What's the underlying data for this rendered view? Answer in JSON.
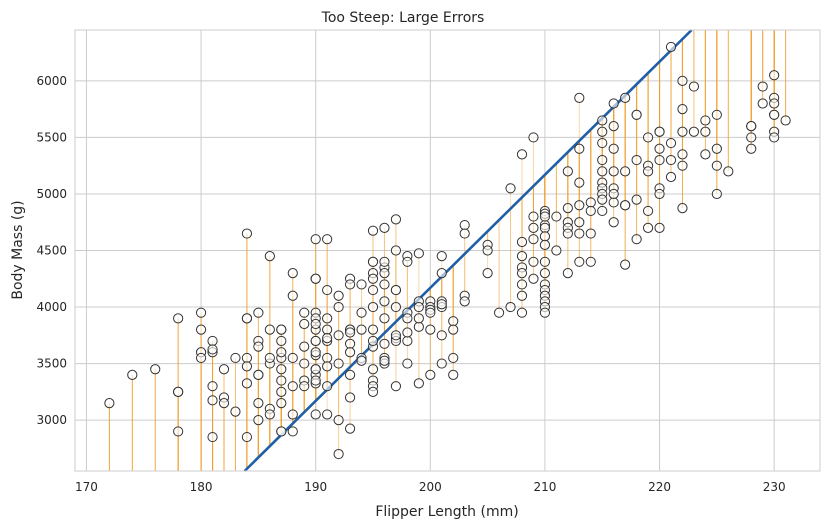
{
  "chart_data": {
    "type": "scatter",
    "title": "Too Steep: Large Errors",
    "xlabel": "Flipper Length (mm)",
    "ylabel": "Body Mass (g)",
    "xlim": [
      169,
      234
    ],
    "ylim": [
      2550,
      6450
    ],
    "xticks": [
      170,
      180,
      190,
      200,
      210,
      220,
      230
    ],
    "yticks": [
      3000,
      3500,
      4000,
      4500,
      5000,
      5500,
      6000
    ],
    "grid": true,
    "line": {
      "slope": 100,
      "intercept": -15830,
      "color": "#1f5fa8"
    },
    "residual_color": "#f0a030",
    "points": [
      [
        172,
        3150
      ],
      [
        174,
        3400
      ],
      [
        176,
        3450
      ],
      [
        178,
        3900
      ],
      [
        178,
        3250
      ],
      [
        178,
        2900
      ],
      [
        178,
        3250
      ],
      [
        180,
        3950
      ],
      [
        180,
        3800
      ],
      [
        180,
        3600
      ],
      [
        180,
        3550
      ],
      [
        181,
        3300
      ],
      [
        181,
        2850
      ],
      [
        181,
        3700
      ],
      [
        181,
        3600
      ],
      [
        181,
        3175
      ],
      [
        181,
        3625
      ],
      [
        182,
        3200
      ],
      [
        182,
        3150
      ],
      [
        182,
        3450
      ],
      [
        183,
        3075
      ],
      [
        183,
        3550
      ],
      [
        184,
        4650
      ],
      [
        184,
        3900
      ],
      [
        184,
        3550
      ],
      [
        184,
        3325
      ],
      [
        184,
        2850
      ],
      [
        184,
        3475
      ],
      [
        184,
        3900
      ],
      [
        185,
        3700
      ],
      [
        185,
        3950
      ],
      [
        185,
        3400
      ],
      [
        185,
        3000
      ],
      [
        185,
        3150
      ],
      [
        185,
        3650
      ],
      [
        185,
        3400
      ],
      [
        186,
        4450
      ],
      [
        186,
        3800
      ],
      [
        186,
        3500
      ],
      [
        186,
        3100
      ],
      [
        186,
        3050
      ],
      [
        186,
        3550
      ],
      [
        187,
        3700
      ],
      [
        187,
        3350
      ],
      [
        187,
        3250
      ],
      [
        187,
        3150
      ],
      [
        187,
        2900
      ],
      [
        187,
        3800
      ],
      [
        187,
        3450
      ],
      [
        187,
        3800
      ],
      [
        187,
        2900
      ],
      [
        187,
        3550
      ],
      [
        187,
        3600
      ],
      [
        188,
        4300
      ],
      [
        188,
        4100
      ],
      [
        188,
        3300
      ],
      [
        188,
        2900
      ],
      [
        188,
        3050
      ],
      [
        188,
        3550
      ],
      [
        189,
        3950
      ],
      [
        189,
        3500
      ],
      [
        189,
        3350
      ],
      [
        189,
        3650
      ],
      [
        189,
        3300
      ],
      [
        189,
        3850
      ],
      [
        190,
        4600
      ],
      [
        190,
        4250
      ],
      [
        190,
        4250
      ],
      [
        190,
        3950
      ],
      [
        190,
        3900
      ],
      [
        190,
        3800
      ],
      [
        190,
        3700
      ],
      [
        190,
        3575
      ],
      [
        190,
        3450
      ],
      [
        190,
        3400
      ],
      [
        190,
        3325
      ],
      [
        190,
        3050
      ],
      [
        190,
        3700
      ],
      [
        190,
        3850
      ],
      [
        190,
        3350
      ],
      [
        190,
        3450
      ],
      [
        190,
        3600
      ],
      [
        191,
        4600
      ],
      [
        191,
        4150
      ],
      [
        191,
        3900
      ],
      [
        191,
        3700
      ],
      [
        191,
        3550
      ],
      [
        191,
        3475
      ],
      [
        191,
        3300
      ],
      [
        191,
        3050
      ],
      [
        191,
        3800
      ],
      [
        191,
        3725
      ],
      [
        192,
        4100
      ],
      [
        192,
        4000
      ],
      [
        192,
        3750
      ],
      [
        192,
        3500
      ],
      [
        192,
        2700
      ],
      [
        192,
        3000
      ],
      [
        193,
        4250
      ],
      [
        193,
        4200
      ],
      [
        193,
        3800
      ],
      [
        193,
        3800
      ],
      [
        193,
        3675
      ],
      [
        193,
        3600
      ],
      [
        193,
        3400
      ],
      [
        193,
        3200
      ],
      [
        193,
        2925
      ],
      [
        193,
        3775
      ],
      [
        194,
        4200
      ],
      [
        194,
        3800
      ],
      [
        194,
        3550
      ],
      [
        194,
        3525
      ],
      [
        194,
        3950
      ],
      [
        195,
        4675
      ],
      [
        195,
        4400
      ],
      [
        195,
        4300
      ],
      [
        195,
        4150
      ],
      [
        195,
        4000
      ],
      [
        195,
        3800
      ],
      [
        195,
        3650
      ],
      [
        195,
        3450
      ],
      [
        195,
        3350
      ],
      [
        195,
        3300
      ],
      [
        195,
        3250
      ],
      [
        195,
        4250
      ],
      [
        195,
        3700
      ],
      [
        195,
        4400
      ],
      [
        196,
        4700
      ],
      [
        196,
        4350
      ],
      [
        196,
        4400
      ],
      [
        196,
        4300
      ],
      [
        196,
        4050
      ],
      [
        196,
        3900
      ],
      [
        196,
        3675
      ],
      [
        196,
        3550
      ],
      [
        196,
        3500
      ],
      [
        196,
        4200
      ],
      [
        196,
        3525
      ],
      [
        197,
        4775
      ],
      [
        197,
        4500
      ],
      [
        197,
        4150
      ],
      [
        197,
        3725
      ],
      [
        197,
        3700
      ],
      [
        197,
        3300
      ],
      [
        197,
        4150
      ],
      [
        197,
        4000
      ],
      [
        197,
        3750
      ],
      [
        198,
        4450
      ],
      [
        198,
        4400
      ],
      [
        198,
        3950
      ],
      [
        198,
        3700
      ],
      [
        198,
        3500
      ],
      [
        198,
        3775
      ],
      [
        198,
        3900
      ],
      [
        199,
        4475
      ],
      [
        199,
        4050
      ],
      [
        199,
        3825
      ],
      [
        199,
        3325
      ],
      [
        199,
        3900
      ],
      [
        199,
        4000
      ],
      [
        200,
        4050
      ],
      [
        200,
        4000
      ],
      [
        200,
        3975
      ],
      [
        200,
        3400
      ],
      [
        200,
        3800
      ],
      [
        200,
        3950
      ],
      [
        201,
        4450
      ],
      [
        201,
        4300
      ],
      [
        201,
        4050
      ],
      [
        201,
        4000
      ],
      [
        201,
        3750
      ],
      [
        201,
        3500
      ],
      [
        201,
        4025
      ],
      [
        202,
        3875
      ],
      [
        202,
        3800
      ],
      [
        202,
        3550
      ],
      [
        202,
        3400
      ],
      [
        203,
        4725
      ],
      [
        203,
        4650
      ],
      [
        203,
        4100
      ],
      [
        203,
        4050
      ],
      [
        205,
        4550
      ],
      [
        205,
        4500
      ],
      [
        205,
        4300
      ],
      [
        206,
        3950
      ],
      [
        207,
        5050
      ],
      [
        207,
        4000
      ],
      [
        208,
        5350
      ],
      [
        208,
        4575
      ],
      [
        208,
        4450
      ],
      [
        208,
        4350
      ],
      [
        208,
        4300
      ],
      [
        208,
        4200
      ],
      [
        208,
        4100
      ],
      [
        208,
        3950
      ],
      [
        209,
        5500
      ],
      [
        209,
        4800
      ],
      [
        209,
        4700
      ],
      [
        209,
        4600
      ],
      [
        209,
        4400
      ],
      [
        209,
        4250
      ],
      [
        210,
        4850
      ],
      [
        210,
        4825
      ],
      [
        210,
        4725
      ],
      [
        210,
        4700
      ],
      [
        210,
        4625
      ],
      [
        210,
        4550
      ],
      [
        210,
        4400
      ],
      [
        210,
        4300
      ],
      [
        210,
        4200
      ],
      [
        210,
        4150
      ],
      [
        210,
        4100
      ],
      [
        210,
        4050
      ],
      [
        210,
        4000
      ],
      [
        210,
        3950
      ],
      [
        210,
        4800
      ],
      [
        211,
        4800
      ],
      [
        211,
        4500
      ],
      [
        212,
        5200
      ],
      [
        212,
        4875
      ],
      [
        212,
        4750
      ],
      [
        212,
        4700
      ],
      [
        212,
        4650
      ],
      [
        212,
        4300
      ],
      [
        213,
        5850
      ],
      [
        213,
        5400
      ],
      [
        213,
        5100
      ],
      [
        213,
        4900
      ],
      [
        213,
        4650
      ],
      [
        213,
        4400
      ],
      [
        213,
        4750
      ],
      [
        214,
        4925
      ],
      [
        214,
        4850
      ],
      [
        214,
        4650
      ],
      [
        214,
        4400
      ],
      [
        215,
        5650
      ],
      [
        215,
        5550
      ],
      [
        215,
        5450
      ],
      [
        215,
        5300
      ],
      [
        215,
        5100
      ],
      [
        215,
        5050
      ],
      [
        215,
        5000
      ],
      [
        215,
        4950
      ],
      [
        215,
        4850
      ],
      [
        215,
        5200
      ],
      [
        216,
        5800
      ],
      [
        216,
        5600
      ],
      [
        216,
        5400
      ],
      [
        216,
        5200
      ],
      [
        216,
        5050
      ],
      [
        216,
        4925
      ],
      [
        216,
        4750
      ],
      [
        216,
        5000
      ],
      [
        217,
        5850
      ],
      [
        217,
        5200
      ],
      [
        217,
        4900
      ],
      [
        217,
        4375
      ],
      [
        217,
        4900
      ],
      [
        218,
        5700
      ],
      [
        218,
        5700
      ],
      [
        218,
        5300
      ],
      [
        218,
        4950
      ],
      [
        218,
        4600
      ],
      [
        219,
        5500
      ],
      [
        219,
        5250
      ],
      [
        219,
        5200
      ],
      [
        219,
        4850
      ],
      [
        219,
        4700
      ],
      [
        220,
        5550
      ],
      [
        220,
        5400
      ],
      [
        220,
        5300
      ],
      [
        220,
        5050
      ],
      [
        220,
        5000
      ],
      [
        220,
        4700
      ],
      [
        220,
        5550
      ],
      [
        221,
        6300
      ],
      [
        221,
        5450
      ],
      [
        221,
        5300
      ],
      [
        221,
        5150
      ],
      [
        222,
        6000
      ],
      [
        222,
        5750
      ],
      [
        222,
        5550
      ],
      [
        222,
        5350
      ],
      [
        222,
        5250
      ],
      [
        222,
        4875
      ],
      [
        223,
        5950
      ],
      [
        223,
        5550
      ],
      [
        224,
        5650
      ],
      [
        224,
        5550
      ],
      [
        224,
        5350
      ],
      [
        225,
        5700
      ],
      [
        225,
        5400
      ],
      [
        225,
        5250
      ],
      [
        225,
        5000
      ],
      [
        226,
        5200
      ],
      [
        228,
        5600
      ],
      [
        228,
        5600
      ],
      [
        228,
        5500
      ],
      [
        228,
        5400
      ],
      [
        229,
        5950
      ],
      [
        229,
        5800
      ],
      [
        230,
        6050
      ],
      [
        230,
        5850
      ],
      [
        230,
        5800
      ],
      [
        230,
        5700
      ],
      [
        230,
        5700
      ],
      [
        230,
        5550
      ],
      [
        230,
        5500
      ],
      [
        231,
        5650
      ]
    ]
  }
}
